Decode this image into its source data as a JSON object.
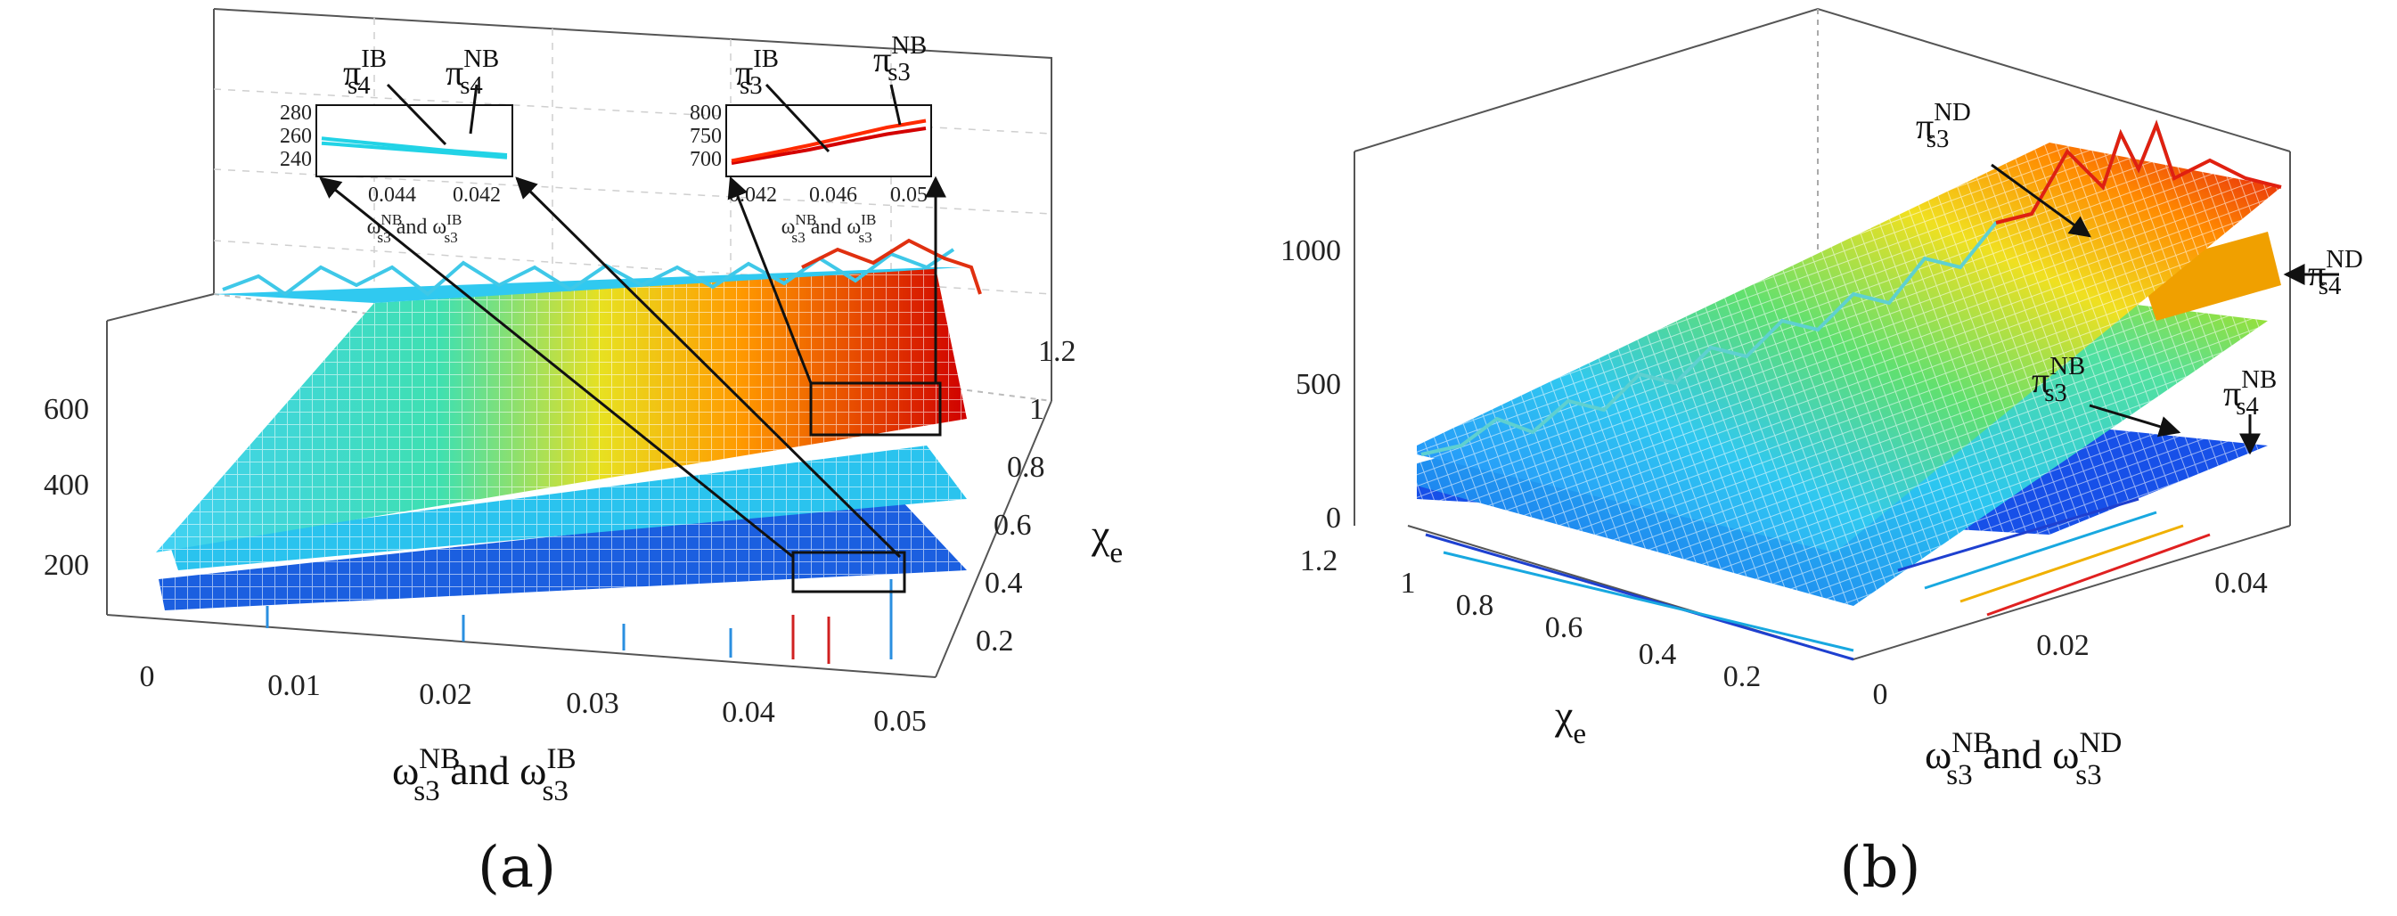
{
  "chart_data": [
    {
      "id": "a",
      "panel_label": "(a)",
      "type": "3d-surface",
      "xlabel": {
        "main": "ω",
        "sup1": "NB",
        "sub1": "s3",
        "mid": " and ω",
        "sup2": "IB",
        "sub2": "s3"
      },
      "ylabel": {
        "main": "χ",
        "sub": "e"
      },
      "x_ticks": [
        "0",
        "0.01",
        "0.02",
        "0.03",
        "0.04",
        "0.05"
      ],
      "y_ticks": [
        "0.2",
        "0.4",
        "0.6",
        "0.8",
        "1",
        "1.2"
      ],
      "z_ticks": [
        "200",
        "400",
        "600"
      ],
      "xlim": [
        0,
        0.05
      ],
      "ylim": [
        0.1,
        1.3
      ],
      "zlim": [
        100,
        800
      ],
      "series": [
        {
          "name": "π s3 IB",
          "color_low": "#33d6ff",
          "color_high": "#d40000",
          "z_at_x0": 250,
          "z_at_x05": 720
        },
        {
          "name": "π s4 IB",
          "color": "#2ac3ee",
          "z_at_x0": 180,
          "z_at_x05": 300
        },
        {
          "name": "π s4 NB",
          "color": "#1b5fe0",
          "z_at_x0": 150,
          "z_at_x05": 200
        }
      ],
      "annotations": [
        {
          "base": "π",
          "sup": "IB",
          "sub": "s4"
        },
        {
          "base": "π",
          "sup": "NB",
          "sub": "s4"
        },
        {
          "base": "π",
          "sup": "IB",
          "sub": "s3"
        },
        {
          "base": "π",
          "sup": "NB",
          "sub": "s3"
        }
      ],
      "insets": [
        {
          "name": "inset-s4",
          "y_ticks": [
            "280",
            "260",
            "240"
          ],
          "x_ticks": [
            "0.044",
            "0.042"
          ],
          "xlabel": {
            "main": "ω",
            "sup1": "NB",
            "sub1": "s3",
            "mid": " and ω",
            "sup2": "IB",
            "sub2": "s3"
          },
          "ylim": [
            230,
            290
          ],
          "series": [
            {
              "name": "π s4 IB",
              "values": [
                258,
                254,
                250,
                246
              ],
              "color": "#22d3e6"
            },
            {
              "name": "π s4 NB",
              "values": [
                262,
                257,
                252,
                248
              ],
              "color": "#22d3e6"
            }
          ]
        },
        {
          "name": "inset-s3",
          "y_ticks": [
            "800",
            "750",
            "700"
          ],
          "x_ticks": [
            "0.042",
            "0.046",
            "0.05"
          ],
          "xlabel": {
            "main": "ω",
            "sup1": "NB",
            "sub1": "s3",
            "mid": " and ω",
            "sup2": "IB",
            "sub2": "s3"
          },
          "ylim": [
            660,
            820
          ],
          "series": [
            {
              "name": "π s3 IB",
              "values": [
                690,
                705,
                720,
                738,
                755,
                768
              ],
              "color": "#d40000"
            },
            {
              "name": "π s3 NB",
              "values": [
                695,
                712,
                730,
                750,
                770,
                785
              ],
              "color": "#ff2a00"
            }
          ]
        }
      ]
    },
    {
      "id": "b",
      "panel_label": "(b)",
      "type": "3d-surface",
      "xlabel": {
        "main": "ω",
        "sup1": "NB",
        "sub1": "s3",
        "mid": " and ω",
        "sup2": "ND",
        "sub2": "s3"
      },
      "ylabel": {
        "main": "χ",
        "sub": "e"
      },
      "x_ticks": [
        "0",
        "0.02",
        "0.04"
      ],
      "y_ticks": [
        "1.2",
        "1",
        "0.8",
        "0.6",
        "0.4",
        "0.2"
      ],
      "z_ticks": [
        "0",
        "500",
        "1000"
      ],
      "xlim": [
        0,
        0.05
      ],
      "ylim": [
        0.1,
        1.3
      ],
      "zlim": [
        0,
        1300
      ],
      "series": [
        {
          "name": "π s3 ND",
          "color_low": "#2e8cff",
          "color_high": "#e01010",
          "z_at_x0": 150,
          "z_at_x05": 1150
        },
        {
          "name": "π s4 ND",
          "color": "#f0a000",
          "z_at_x05": 900
        },
        {
          "name": "π s3 NB",
          "color_low": "#1e6fff",
          "color_high": "#9fe020",
          "z_at_x05": 700
        },
        {
          "name": "π s4 NB",
          "color": "#1750e8",
          "z_at_x05": 250
        }
      ],
      "annotations": [
        {
          "base": "π",
          "sup": "ND",
          "sub": "s3"
        },
        {
          "base": "π",
          "sup": "ND",
          "sub": "s4"
        },
        {
          "base": "π",
          "sup": "NB",
          "sub": "s3"
        },
        {
          "base": "π",
          "sup": "NB",
          "sub": "s4"
        }
      ]
    }
  ]
}
